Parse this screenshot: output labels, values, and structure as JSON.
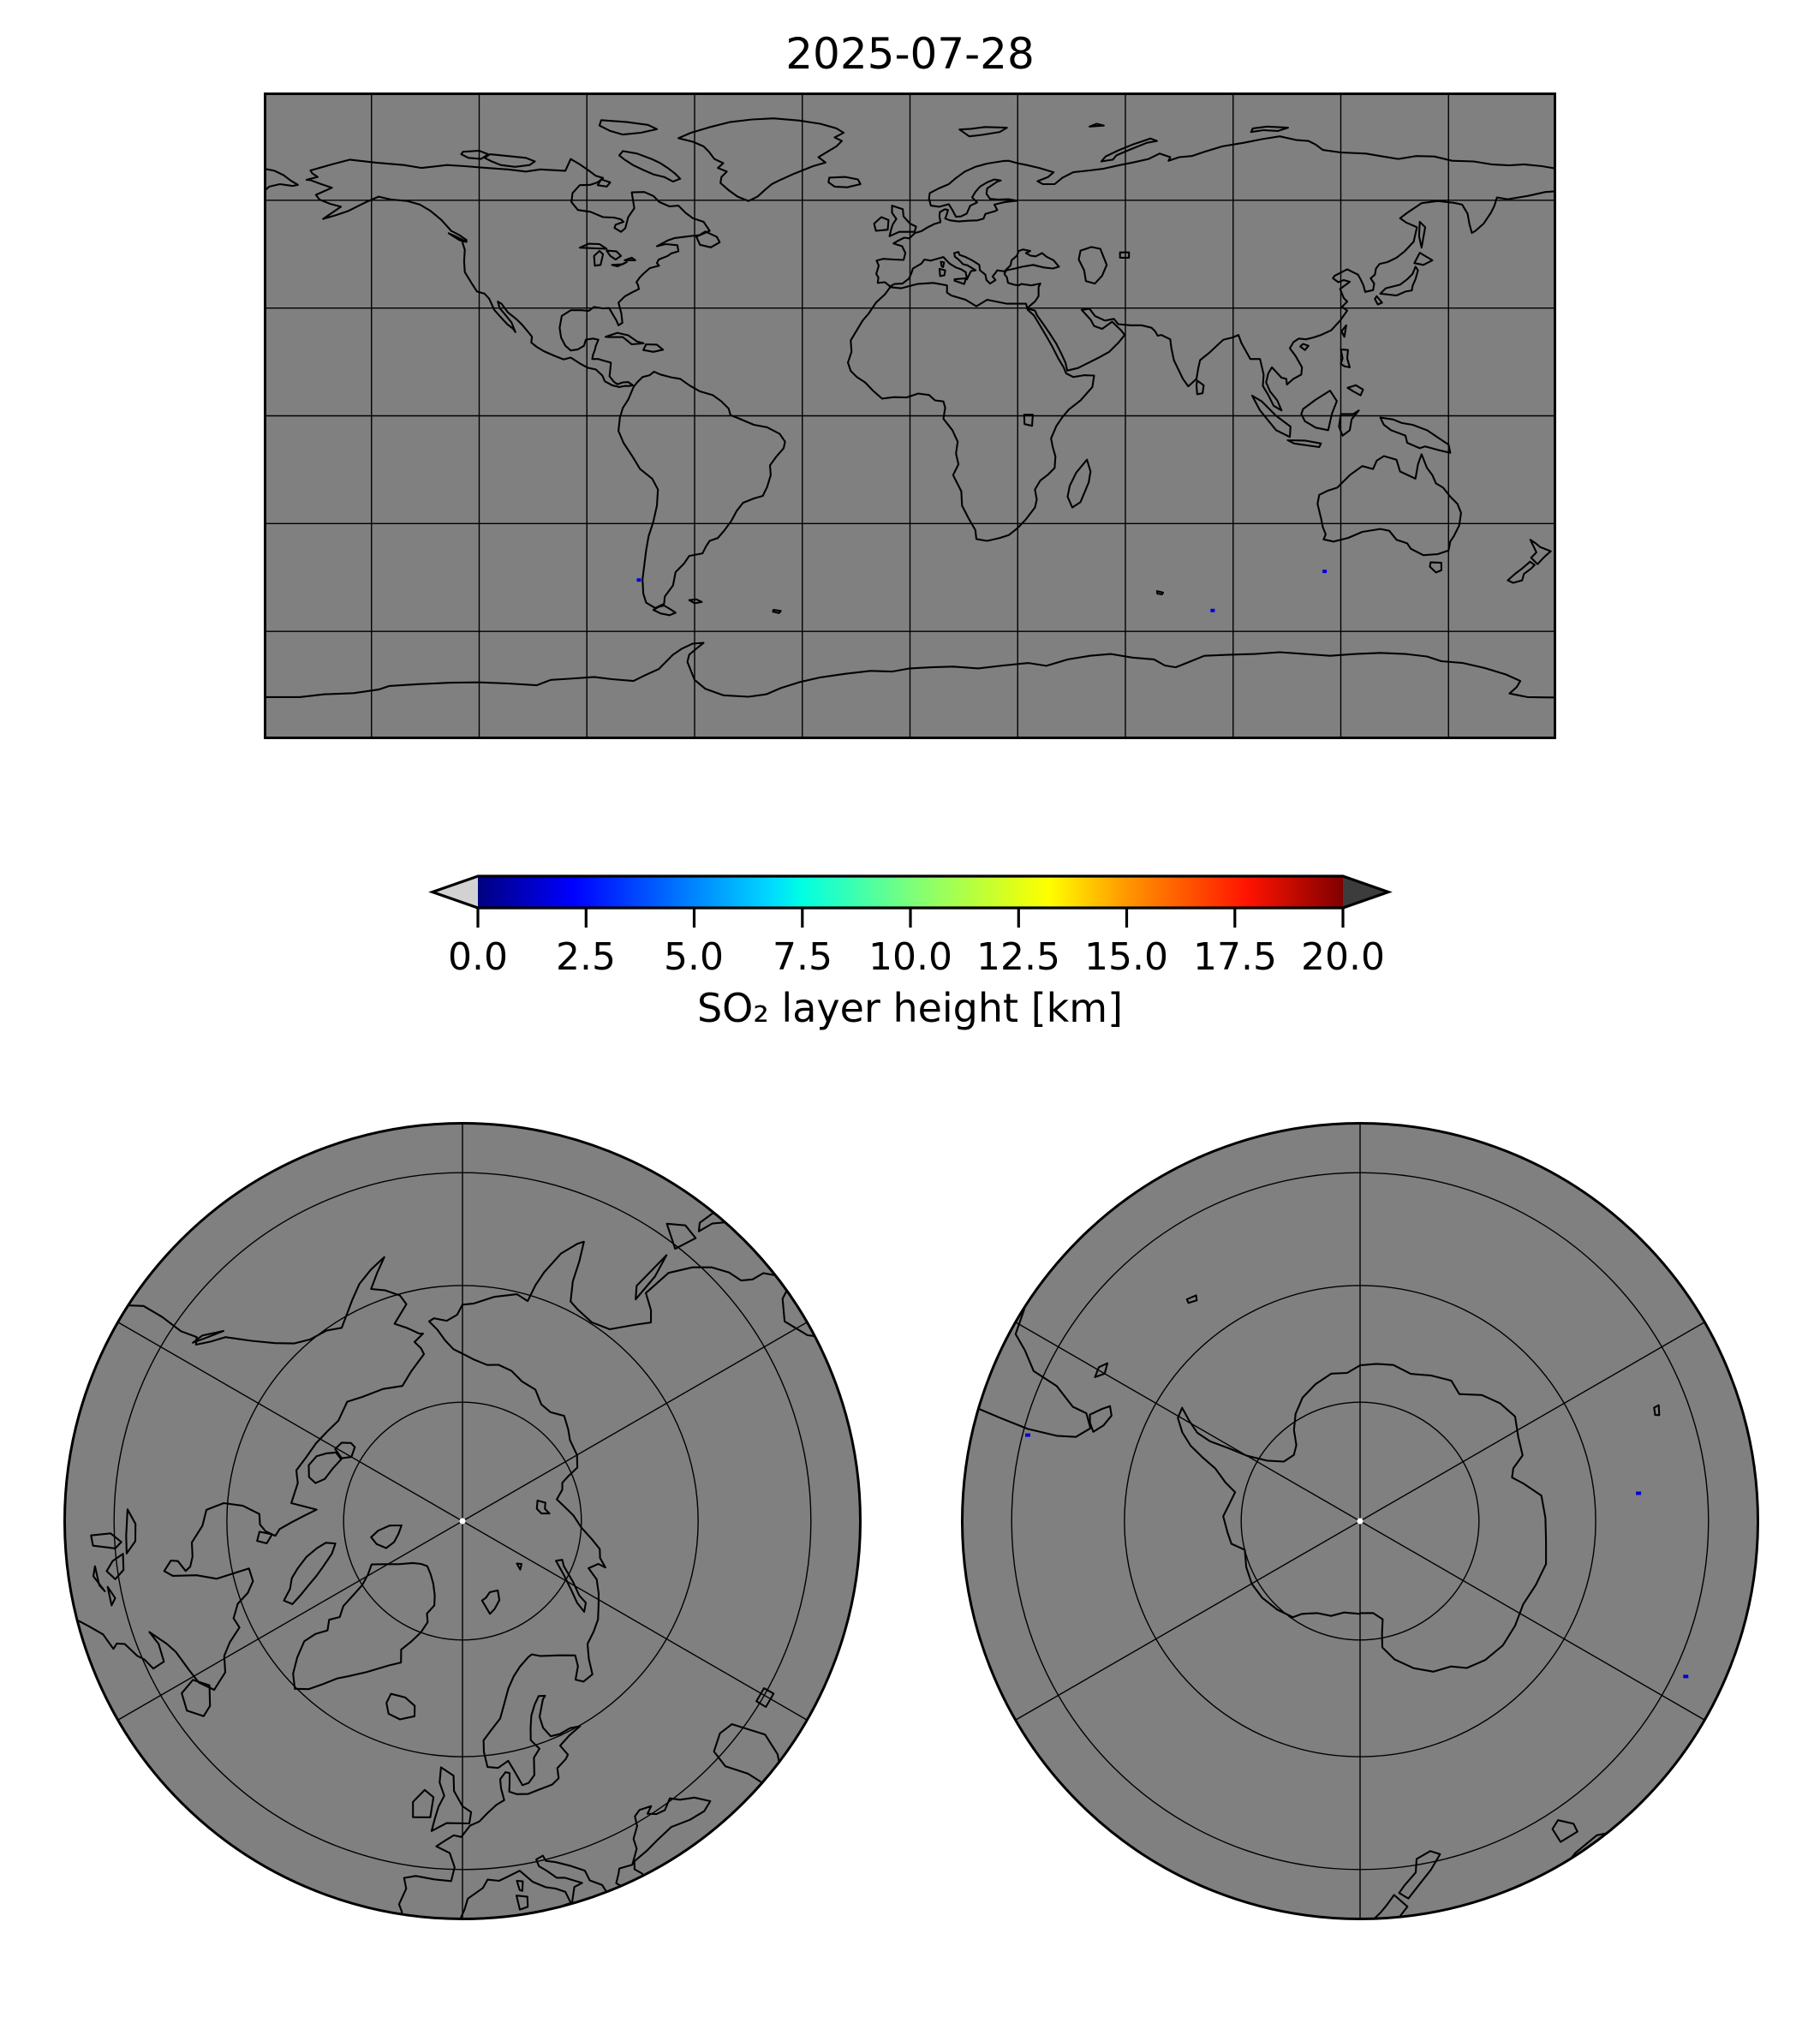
{
  "title": "2025-07-28",
  "colorbar": {
    "label": "SO₂ layer height [km]",
    "ticks": [
      "0.0",
      "2.5",
      "5.0",
      "7.5",
      "10.0",
      "12.5",
      "15.0",
      "17.5",
      "20.0"
    ],
    "min": 0,
    "max": 20,
    "colormap": "jet",
    "under_color": "#d2d2d2",
    "over_color": "#3c3c3c",
    "gradient_stops": [
      [
        0,
        "#000080"
      ],
      [
        0.11,
        "#0000ff"
      ],
      [
        0.34,
        "#00dbff"
      ],
      [
        0.375,
        "#00ffe2"
      ],
      [
        0.5,
        "#7bff7b"
      ],
      [
        0.625,
        "#e2ff14"
      ],
      [
        0.66,
        "#ffff00"
      ],
      [
        0.75,
        "#ff9700"
      ],
      [
        0.89,
        "#ff1300"
      ],
      [
        1,
        "#800000"
      ]
    ]
  },
  "maps": {
    "global": {
      "projection": "equirectangular",
      "lon_range": [
        -180,
        180
      ],
      "lat_range": [
        -90,
        90
      ],
      "grid_step_deg": 30
    },
    "north_polar": {
      "projection": "north-polar-azimuthal",
      "boundary_lat": 38,
      "parallel_rings_lat": [
        75,
        60,
        45
      ],
      "meridian_step_deg": 60
    },
    "south_polar": {
      "projection": "south-polar-azimuthal",
      "boundary_lat": -38,
      "parallel_rings_lat": [
        -75,
        -60,
        -45
      ],
      "meridian_step_deg": 60
    }
  },
  "detections": [
    {
      "lon": 84.3,
      "lat": -54.2,
      "color": "#0000d8"
    },
    {
      "lon": 115.5,
      "lat": -43.3,
      "color": "#0000d8"
    },
    {
      "lon": -75.5,
      "lat": -45.7,
      "color": "#0000d8"
    }
  ],
  "colors": {
    "map_fill": "#808080",
    "coastline": "#000000",
    "grid": "#000000",
    "border": "#000000",
    "background": "#ffffff",
    "pole_dot": "#ffffff"
  }
}
